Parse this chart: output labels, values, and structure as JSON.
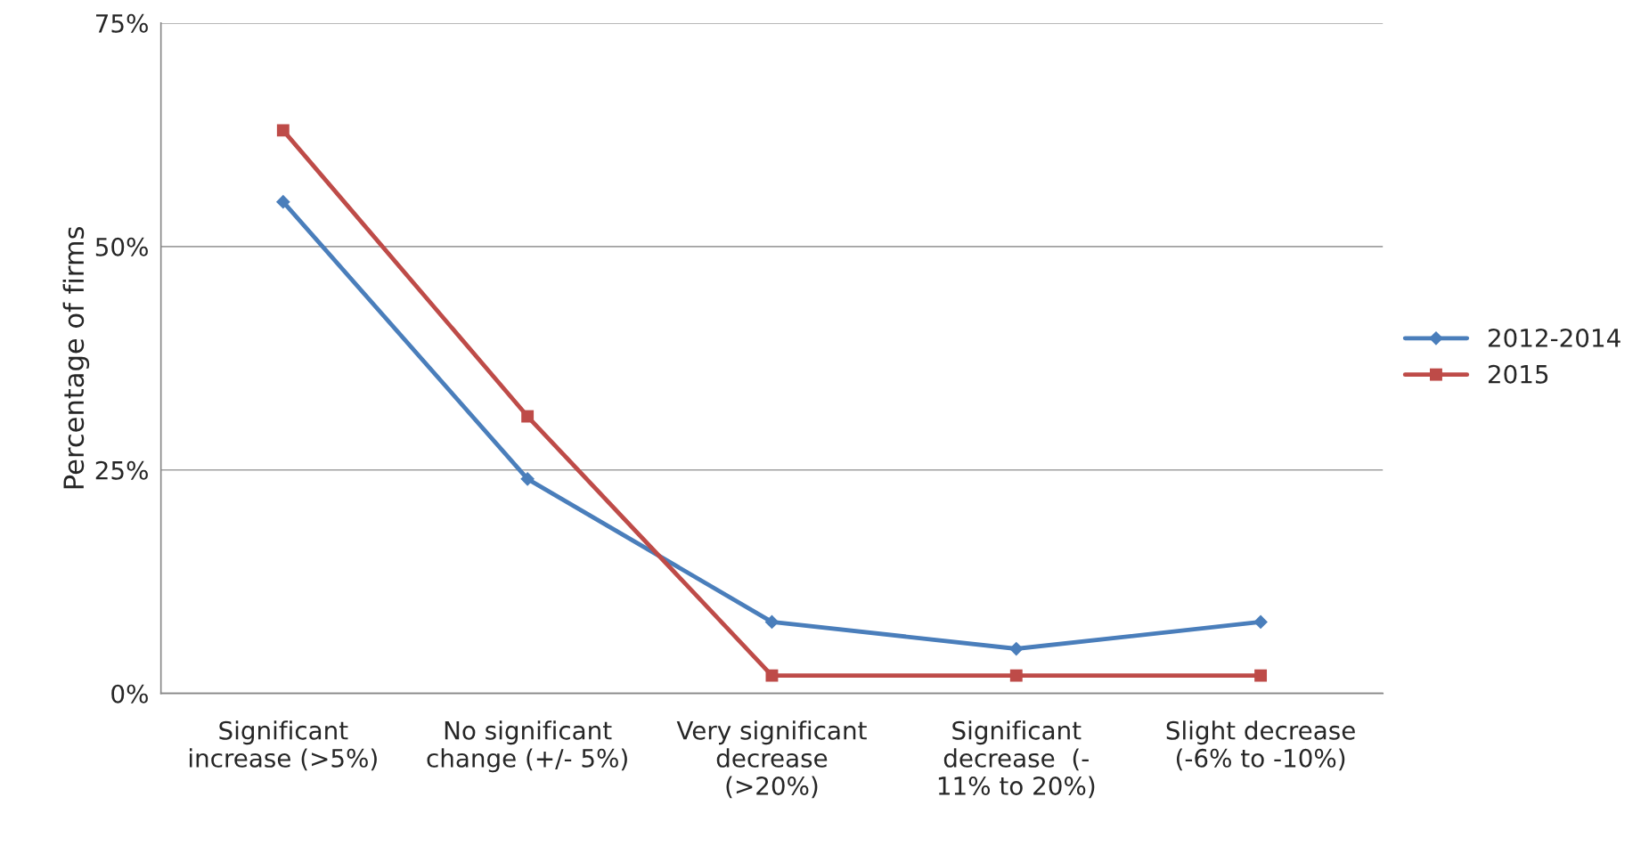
{
  "chart_data": {
    "type": "line",
    "ylabel": "Percentage of firms",
    "categories": [
      "Significant\nincrease (>5%)",
      "No significant\nchange (+/- 5%)",
      "Very significant\ndecrease\n(>20%)",
      "Significant\ndecrease  (-\n11% to 20%)",
      "Slight decrease\n(-6% to -10%)"
    ],
    "series": [
      {
        "name": "2012-2014",
        "color": "#4a7ebb",
        "marker": "diamond",
        "values": [
          55,
          24,
          8,
          5,
          8
        ]
      },
      {
        "name": "2015",
        "color": "#be4b48",
        "marker": "square",
        "values": [
          63,
          31,
          2,
          2,
          2
        ]
      }
    ],
    "ylim": [
      0,
      75
    ],
    "yticks": [
      {
        "value": 0,
        "label": "0%"
      },
      {
        "value": 25,
        "label": "25%"
      },
      {
        "value": 50,
        "label": "50%"
      },
      {
        "value": 75,
        "label": "75%"
      }
    ],
    "grid": "y",
    "legend": "right",
    "line_style": "solid"
  }
}
